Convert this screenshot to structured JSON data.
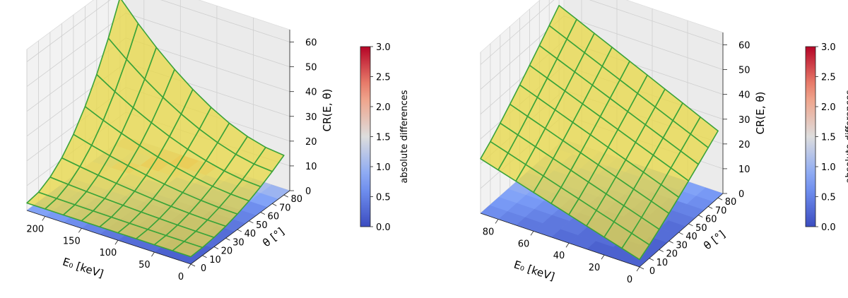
{
  "chart_data": [
    {
      "type": "surface3d",
      "x_label": "E₀ [keV]",
      "y_label": "θ [°]",
      "z_label": "CR(E, θ)",
      "x_ticks": [
        0,
        50,
        100,
        150,
        200
      ],
      "y_ticks": [
        0,
        10,
        20,
        30,
        40,
        50,
        60,
        70,
        80
      ],
      "z_ticks": [
        0,
        10,
        20,
        30,
        40,
        50,
        60
      ],
      "x_range": [
        0,
        225
      ],
      "y_range": [
        0,
        85
      ],
      "z_range": [
        0,
        65
      ],
      "surface": {
        "rows_E": [
          0,
          25,
          50,
          75,
          100,
          125,
          150,
          175,
          200,
          225
        ],
        "cols_theta": [
          0,
          10,
          20,
          30,
          40,
          50,
          60,
          70,
          80
        ],
        "values_at_corners": {
          "E0_theta0": 3,
          "E0_theta80": 16,
          "E225_theta0": 3,
          "E225_theta80": 58
        },
        "face_color": "#e8d84a",
        "edge_color": "#3aa33a"
      },
      "floor_heatmap": {
        "label": "absolute differences",
        "values": [
          [
            0.2,
            0.2,
            0.3,
            0.3,
            0.4,
            0.5,
            0.6,
            0.8,
            1.0
          ],
          [
            0.2,
            0.2,
            0.3,
            0.4,
            0.4,
            0.5,
            0.7,
            0.9,
            1.1
          ],
          [
            0.3,
            0.3,
            0.3,
            0.4,
            0.5,
            0.6,
            0.8,
            1.0,
            1.3
          ],
          [
            0.3,
            0.3,
            0.4,
            0.5,
            0.6,
            0.7,
            0.9,
            1.2,
            1.5
          ],
          [
            0.4,
            0.4,
            0.5,
            0.6,
            0.7,
            0.9,
            1.1,
            1.4,
            1.8
          ],
          [
            0.5,
            0.5,
            0.6,
            0.7,
            0.9,
            1.1,
            1.4,
            1.7,
            2.1
          ],
          [
            0.6,
            0.6,
            0.7,
            0.9,
            1.1,
            1.3,
            1.6,
            2.0,
            1.8
          ],
          [
            0.7,
            0.7,
            0.9,
            1.1,
            1.3,
            1.5,
            1.8,
            1.4,
            1.6
          ],
          [
            0.8,
            0.9,
            1.0,
            1.2,
            1.4,
            1.6,
            1.3,
            1.5,
            1.7
          ]
        ]
      },
      "colorbar": {
        "label": "absolute differences",
        "range": [
          0.0,
          3.0
        ],
        "ticks": [
          "0.0",
          "0.5",
          "1.0",
          "1.5",
          "2.0",
          "2.5",
          "3.0"
        ],
        "colormap": "coolwarm"
      }
    },
    {
      "type": "surface3d",
      "x_label": "E₀ [keV]",
      "y_label": "θ [°]",
      "z_label": "CR(E, θ)",
      "x_ticks": [
        0,
        20,
        40,
        60,
        80
      ],
      "y_ticks": [
        0,
        10,
        20,
        30,
        40,
        50,
        60,
        70,
        80
      ],
      "z_ticks": [
        0,
        10,
        20,
        30,
        40,
        50,
        60
      ],
      "x_range": [
        0,
        90
      ],
      "y_range": [
        0,
        85
      ],
      "z_range": [
        0,
        65
      ],
      "surface": {
        "rows_E": [
          0,
          10,
          20,
          30,
          40,
          50,
          60,
          70,
          80,
          90
        ],
        "cols_theta": [
          0,
          10,
          20,
          30,
          40,
          50,
          60,
          70,
          80
        ],
        "values_at_corners": {
          "E0_theta0": 3,
          "E0_theta80": 27,
          "E90_theta0": 22,
          "E90_theta80": 56
        },
        "face_color": "#e8d84a",
        "edge_color": "#3aa33a"
      },
      "floor_heatmap": {
        "label": "absolute differences",
        "values": [
          [
            0.2,
            0.2,
            0.2,
            0.3,
            0.3,
            0.4,
            0.5,
            0.6,
            0.7
          ],
          [
            0.2,
            0.2,
            0.3,
            0.3,
            0.4,
            0.4,
            0.5,
            0.7,
            0.8
          ],
          [
            0.2,
            0.3,
            0.3,
            0.4,
            0.4,
            0.5,
            0.6,
            0.7,
            0.9
          ],
          [
            0.3,
            0.3,
            0.4,
            0.4,
            0.5,
            0.6,
            0.7,
            0.8,
            1.0
          ],
          [
            0.3,
            0.4,
            0.4,
            0.5,
            0.6,
            0.7,
            0.8,
            0.9,
            1.1
          ],
          [
            0.4,
            0.4,
            0.5,
            0.6,
            0.7,
            0.8,
            0.9,
            1.0,
            1.3
          ],
          [
            0.4,
            0.5,
            0.6,
            0.7,
            0.8,
            0.9,
            1.0,
            1.2,
            1.4
          ],
          [
            0.5,
            0.6,
            0.7,
            0.8,
            0.9,
            1.0,
            1.2,
            1.3,
            1.5
          ],
          [
            0.6,
            0.7,
            0.8,
            0.9,
            1.0,
            1.2,
            1.3,
            1.5,
            1.4
          ]
        ]
      },
      "colorbar": {
        "label": "absolute differences",
        "range": [
          0.0,
          3.0
        ],
        "ticks": [
          "0.0",
          "0.5",
          "1.0",
          "1.5",
          "2.0",
          "2.5",
          "3.0"
        ],
        "colormap": "coolwarm"
      }
    }
  ]
}
